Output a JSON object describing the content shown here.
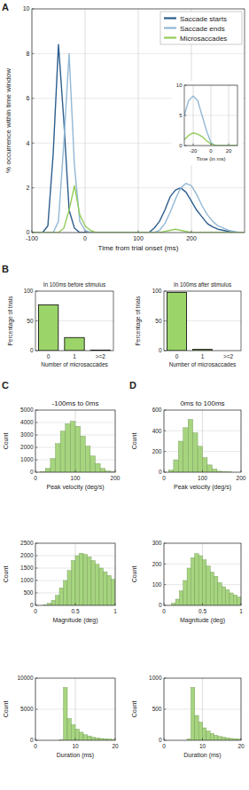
{
  "chart_data": [
    {
      "type": "line",
      "panel": "A",
      "xlabel": "Time from trial onset (ms)",
      "ylabel": "% occurrence within time window",
      "x": [
        -100,
        -90,
        -80,
        -70,
        -60,
        -50,
        -40,
        -30,
        -20,
        -10,
        0,
        10,
        20,
        30,
        40,
        50,
        60,
        70,
        80,
        90,
        100,
        110,
        120,
        130,
        140,
        150,
        160,
        170,
        180,
        190,
        200,
        210,
        220,
        230,
        240,
        250,
        260,
        270,
        280,
        290,
        300
      ],
      "series": [
        {
          "name": "Saccade starts",
          "color": "#2c5d8c",
          "values": [
            0,
            0,
            0,
            0.3,
            3.5,
            8.4,
            5.0,
            1.0,
            0.2,
            0,
            0,
            0,
            0,
            0,
            0,
            0,
            0,
            0,
            0,
            0,
            0,
            0,
            0,
            0.2,
            0.5,
            1.0,
            1.6,
            1.9,
            2.0,
            1.8,
            1.4,
            1.0,
            0.7,
            0.4,
            0.25,
            0.15,
            0.1,
            0.05,
            0,
            0,
            0
          ]
        },
        {
          "name": "Saccade ends",
          "color": "#92b8d6",
          "values": [
            0,
            0,
            0,
            0,
            0,
            0.5,
            4.0,
            8.0,
            3.0,
            0.5,
            0.1,
            0,
            0,
            0,
            0,
            0,
            0,
            0,
            0,
            0,
            0,
            0,
            0,
            0,
            0.1,
            0.4,
            0.9,
            1.5,
            2.0,
            2.2,
            2.1,
            1.7,
            1.2,
            0.8,
            0.5,
            0.3,
            0.2,
            0.1,
            0.05,
            0,
            0
          ]
        },
        {
          "name": "Microsaccades",
          "color": "#93cc5a",
          "values": [
            0,
            0,
            0,
            0,
            0,
            0,
            0.2,
            1.0,
            2.1,
            0.8,
            0.3,
            0.1,
            0,
            0,
            0,
            0,
            0,
            0,
            0,
            0,
            0,
            0,
            0,
            0,
            0,
            0.05,
            0.1,
            0.15,
            0.1,
            0.05,
            0,
            0,
            0,
            0,
            0,
            0,
            0,
            0,
            0,
            0,
            0
          ]
        }
      ],
      "xlim": [
        -100,
        300
      ],
      "ylim": [
        0,
        10
      ],
      "xticks": [
        -100,
        0,
        100,
        200
      ],
      "yticks": [
        0,
        2,
        4,
        6,
        8,
        10
      ],
      "grid": true,
      "legend": "upper right"
    },
    {
      "type": "line",
      "xlabel": "Time (in ms)",
      "x": [
        -30,
        -25,
        -20,
        -15,
        -10,
        -5,
        0,
        5,
        10,
        15,
        20,
        25,
        30
      ],
      "series": [
        {
          "color": "#92b8d6",
          "values": [
            5.0,
            7.5,
            8.2,
            7.5,
            5.0,
            2.5,
            0.5,
            0,
            0,
            0,
            0,
            0,
            0
          ]
        },
        {
          "color": "#93cc5a",
          "values": [
            1.0,
            1.7,
            2.1,
            1.9,
            1.5,
            0.8,
            0.3,
            0,
            0,
            0,
            0,
            0,
            0
          ]
        }
      ],
      "xlim": [
        -30,
        30
      ],
      "ylim": [
        0,
        10
      ],
      "xticks": [
        -20,
        0,
        20
      ],
      "yticks": [
        0,
        5,
        10
      ],
      "grid": true
    },
    {
      "type": "bar",
      "panel": "B",
      "title": "In 100ms before stimulus",
      "xlabel": "Number of microsaccades",
      "ylabel": "Percentage of trials",
      "categories": [
        "0",
        "1",
        ">=2"
      ],
      "values": [
        77,
        22,
        1
      ],
      "color": "#9bd468",
      "ylim": [
        0,
        100
      ],
      "yticks": [
        0,
        50,
        100
      ],
      "grid": true
    },
    {
      "type": "bar",
      "title": "In 100ms after stimulus",
      "xlabel": "Number of microsaccades",
      "ylabel": "Percentage of trials",
      "categories": [
        "0",
        "1",
        ">=2"
      ],
      "values": [
        98,
        2,
        0
      ],
      "color": "#9bd468",
      "ylim": [
        0,
        100
      ],
      "yticks": [
        0,
        50,
        100
      ],
      "grid": true
    },
    {
      "type": "histogram",
      "panel": "C",
      "title": "-100ms to 0ms",
      "xlabel": "Peak velocity (deg/s)",
      "ylabel": "Count",
      "bins": [
        0,
        12.5,
        25,
        37.5,
        50,
        62.5,
        75,
        87.5,
        100,
        112.5,
        125,
        137.5,
        150,
        162.5,
        175,
        187.5,
        200
      ],
      "values": [
        0,
        50,
        300,
        1100,
        2300,
        3300,
        3900,
        4100,
        3700,
        2900,
        2100,
        1300,
        700,
        300,
        100,
        30
      ],
      "color": "#a6d47f",
      "xlim": [
        0,
        200
      ],
      "ylim": [
        0,
        5000
      ],
      "xticks": [
        0,
        100,
        200
      ],
      "yticks": [
        0,
        1000,
        2000,
        3000,
        4000,
        5000
      ],
      "grid": true
    },
    {
      "type": "histogram",
      "xlabel": "Magnitude (deg)",
      "ylabel": "Count",
      "bins": [
        0,
        0.05,
        0.1,
        0.15,
        0.2,
        0.25,
        0.3,
        0.35,
        0.4,
        0.45,
        0.5,
        0.55,
        0.6,
        0.65,
        0.7,
        0.75,
        0.8,
        0.85,
        0.9,
        0.95,
        1
      ],
      "values": [
        0,
        0,
        20,
        80,
        200,
        400,
        700,
        1000,
        1400,
        1800,
        2000,
        2100,
        2050,
        1950,
        1800,
        1650,
        1500,
        1350,
        1200,
        1050
      ],
      "color": "#a6d47f",
      "xlim": [
        0,
        1
      ],
      "ylim": [
        0,
        2500
      ],
      "xticks": [
        0,
        0.5,
        1
      ],
      "yticks": [
        0,
        500,
        1000,
        1500,
        2000,
        2500
      ],
      "grid": true
    },
    {
      "type": "histogram",
      "xlabel": "Duration (ms)",
      "ylabel": "Count",
      "bins": [
        0,
        1,
        2,
        3,
        4,
        5,
        6,
        7,
        8,
        9,
        10,
        11,
        12,
        13,
        14,
        15,
        16,
        17,
        18,
        19,
        20
      ],
      "values": [
        0,
        0,
        0,
        0,
        0,
        0,
        100,
        8500,
        3500,
        2500,
        1800,
        1300,
        900,
        700,
        500,
        400,
        300,
        250,
        200,
        150
      ],
      "color": "#a6d47f",
      "xlim": [
        0,
        20
      ],
      "ylim": [
        0,
        10000
      ],
      "xticks": [
        0,
        10,
        20
      ],
      "yticks": [
        0,
        5000,
        10000
      ],
      "grid": true
    },
    {
      "type": "histogram",
      "panel": "D",
      "title": "0ms to 100ms",
      "xlabel": "Peak velocity (deg/s)",
      "ylabel": "Count",
      "bins": [
        0,
        12.5,
        25,
        37.5,
        50,
        62.5,
        75,
        87.5,
        100,
        112.5,
        125,
        137.5,
        150,
        162.5,
        175,
        187.5,
        200
      ],
      "values": [
        0,
        20,
        120,
        300,
        430,
        510,
        380,
        250,
        140,
        70,
        30,
        10,
        5,
        2,
        0,
        0
      ],
      "color": "#a6d47f",
      "xlim": [
        0,
        200
      ],
      "ylim": [
        0,
        600
      ],
      "xticks": [
        0,
        100,
        200
      ],
      "yticks": [
        0,
        200,
        400,
        600
      ],
      "grid": true
    },
    {
      "type": "histogram",
      "xlabel": "Magnitude (deg)",
      "ylabel": "Count",
      "bins": [
        0,
        0.05,
        0.1,
        0.15,
        0.2,
        0.25,
        0.3,
        0.35,
        0.4,
        0.45,
        0.5,
        0.55,
        0.6,
        0.65,
        0.7,
        0.75,
        0.8,
        0.85,
        0.9,
        0.95,
        1
      ],
      "values": [
        0,
        0,
        10,
        30,
        70,
        120,
        180,
        230,
        250,
        240,
        220,
        190,
        160,
        140,
        110,
        90,
        75,
        60,
        50,
        40
      ],
      "color": "#a6d47f",
      "xlim": [
        0,
        1
      ],
      "ylim": [
        0,
        300
      ],
      "xticks": [
        0,
        0.5,
        1
      ],
      "yticks": [
        0,
        100,
        200,
        300
      ],
      "grid": true
    },
    {
      "type": "histogram",
      "xlabel": "Duration (ms)",
      "ylabel": "Count",
      "bins": [
        0,
        1,
        2,
        3,
        4,
        5,
        6,
        7,
        8,
        9,
        10,
        11,
        12,
        13,
        14,
        15,
        16,
        17,
        18,
        19,
        20
      ],
      "values": [
        0,
        0,
        0,
        0,
        0,
        0,
        20,
        850,
        400,
        290,
        200,
        150,
        110,
        80,
        60,
        50,
        40,
        30,
        25,
        20
      ],
      "color": "#a6d47f",
      "xlim": [
        0,
        20
      ],
      "ylim": [
        0,
        1000
      ],
      "xticks": [
        0,
        10,
        20
      ],
      "yticks": [
        0,
        500,
        1000
      ],
      "grid": true
    }
  ]
}
